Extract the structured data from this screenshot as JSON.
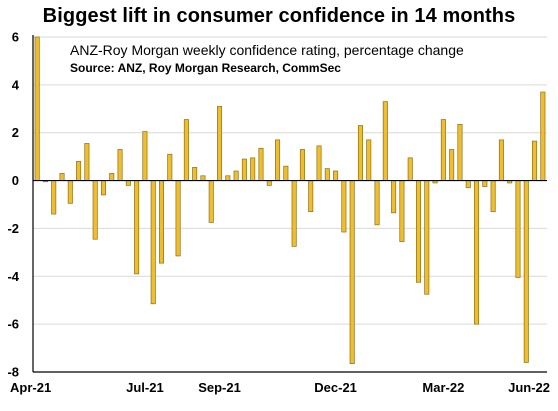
{
  "chart_data": {
    "type": "bar",
    "title": "Biggest lift in consumer confidence in 14 months",
    "subtitle": "ANZ-Roy Morgan weekly confidence rating, percentage change",
    "source": "Source: ANZ, Roy Morgan Research, CommSec",
    "xlabel": "",
    "ylabel": "",
    "ylim": [
      -8,
      6
    ],
    "yticks": [
      6,
      4,
      2,
      0,
      -2,
      -4,
      -6,
      -8
    ],
    "grid": "horizontal",
    "bar_color": "#EFBE2E",
    "bar_edge_color": "#8F6E14",
    "x_tick_labels": [
      "Apr-21",
      "Jul-21",
      "Sep-21",
      "Dec-21",
      "Mar-22",
      "Jun-22"
    ],
    "x_tick_bar_index": [
      0,
      13,
      22,
      36,
      49,
      62
    ],
    "values": [
      6.0,
      -0.05,
      -1.4,
      0.3,
      -0.95,
      0.8,
      1.55,
      -2.45,
      -0.6,
      0.3,
      1.3,
      -0.2,
      -3.9,
      2.05,
      -5.15,
      -3.45,
      1.1,
      -3.15,
      2.55,
      0.55,
      0.2,
      -1.75,
      3.1,
      0.2,
      0.4,
      0.9,
      0.95,
      1.35,
      -0.2,
      1.7,
      0.6,
      -2.75,
      1.3,
      -1.3,
      1.45,
      0.5,
      0.4,
      -2.15,
      -7.65,
      2.3,
      1.7,
      -1.85,
      3.3,
      -1.35,
      -2.55,
      0.95,
      -4.25,
      -4.75,
      -0.1,
      2.55,
      1.3,
      2.35,
      -0.3,
      -6.0,
      -0.25,
      -1.3,
      1.7,
      -0.1,
      -4.05,
      -7.6,
      1.65,
      3.7
    ]
  }
}
